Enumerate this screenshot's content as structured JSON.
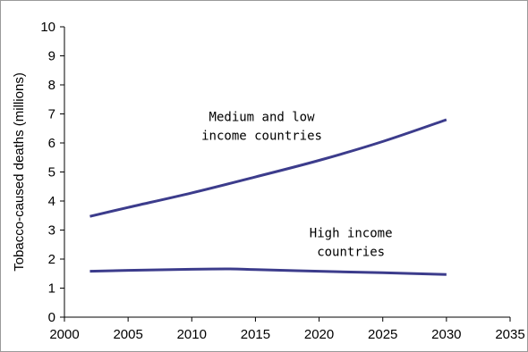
{
  "chart_data": {
    "type": "line",
    "title": "",
    "xlabel": "",
    "ylabel": "Tobacco-caused deaths (millions)",
    "xlim": [
      2000,
      2035
    ],
    "ylim": [
      0,
      10
    ],
    "x_ticks": [
      "2000",
      "2005",
      "2010",
      "2015",
      "2020",
      "2025",
      "2030",
      "2035"
    ],
    "y_ticks": [
      "0",
      "1",
      "2",
      "3",
      "4",
      "5",
      "6",
      "7",
      "8",
      "9",
      "10"
    ],
    "grid": false,
    "legend": "none",
    "line_color": "#3c3c8c",
    "series": [
      {
        "x": [
          2002,
          2005,
          2010,
          2015,
          2020,
          2025,
          2030
        ],
        "y": [
          3.47,
          3.78,
          4.28,
          4.83,
          5.4,
          6.05,
          6.8
        ]
      },
      {
        "x": [
          2002,
          2005,
          2010,
          2013,
          2015,
          2020,
          2025,
          2030
        ],
        "y": [
          1.58,
          1.61,
          1.65,
          1.66,
          1.64,
          1.58,
          1.53,
          1.47
        ]
      }
    ],
    "annotations": [
      {
        "lines": [
          "Medium and low",
          "income countries"
        ],
        "x": 2015.5,
        "y": 6.75
      },
      {
        "lines": [
          "High income",
          "countries"
        ],
        "x": 2022.5,
        "y": 2.75
      }
    ]
  }
}
